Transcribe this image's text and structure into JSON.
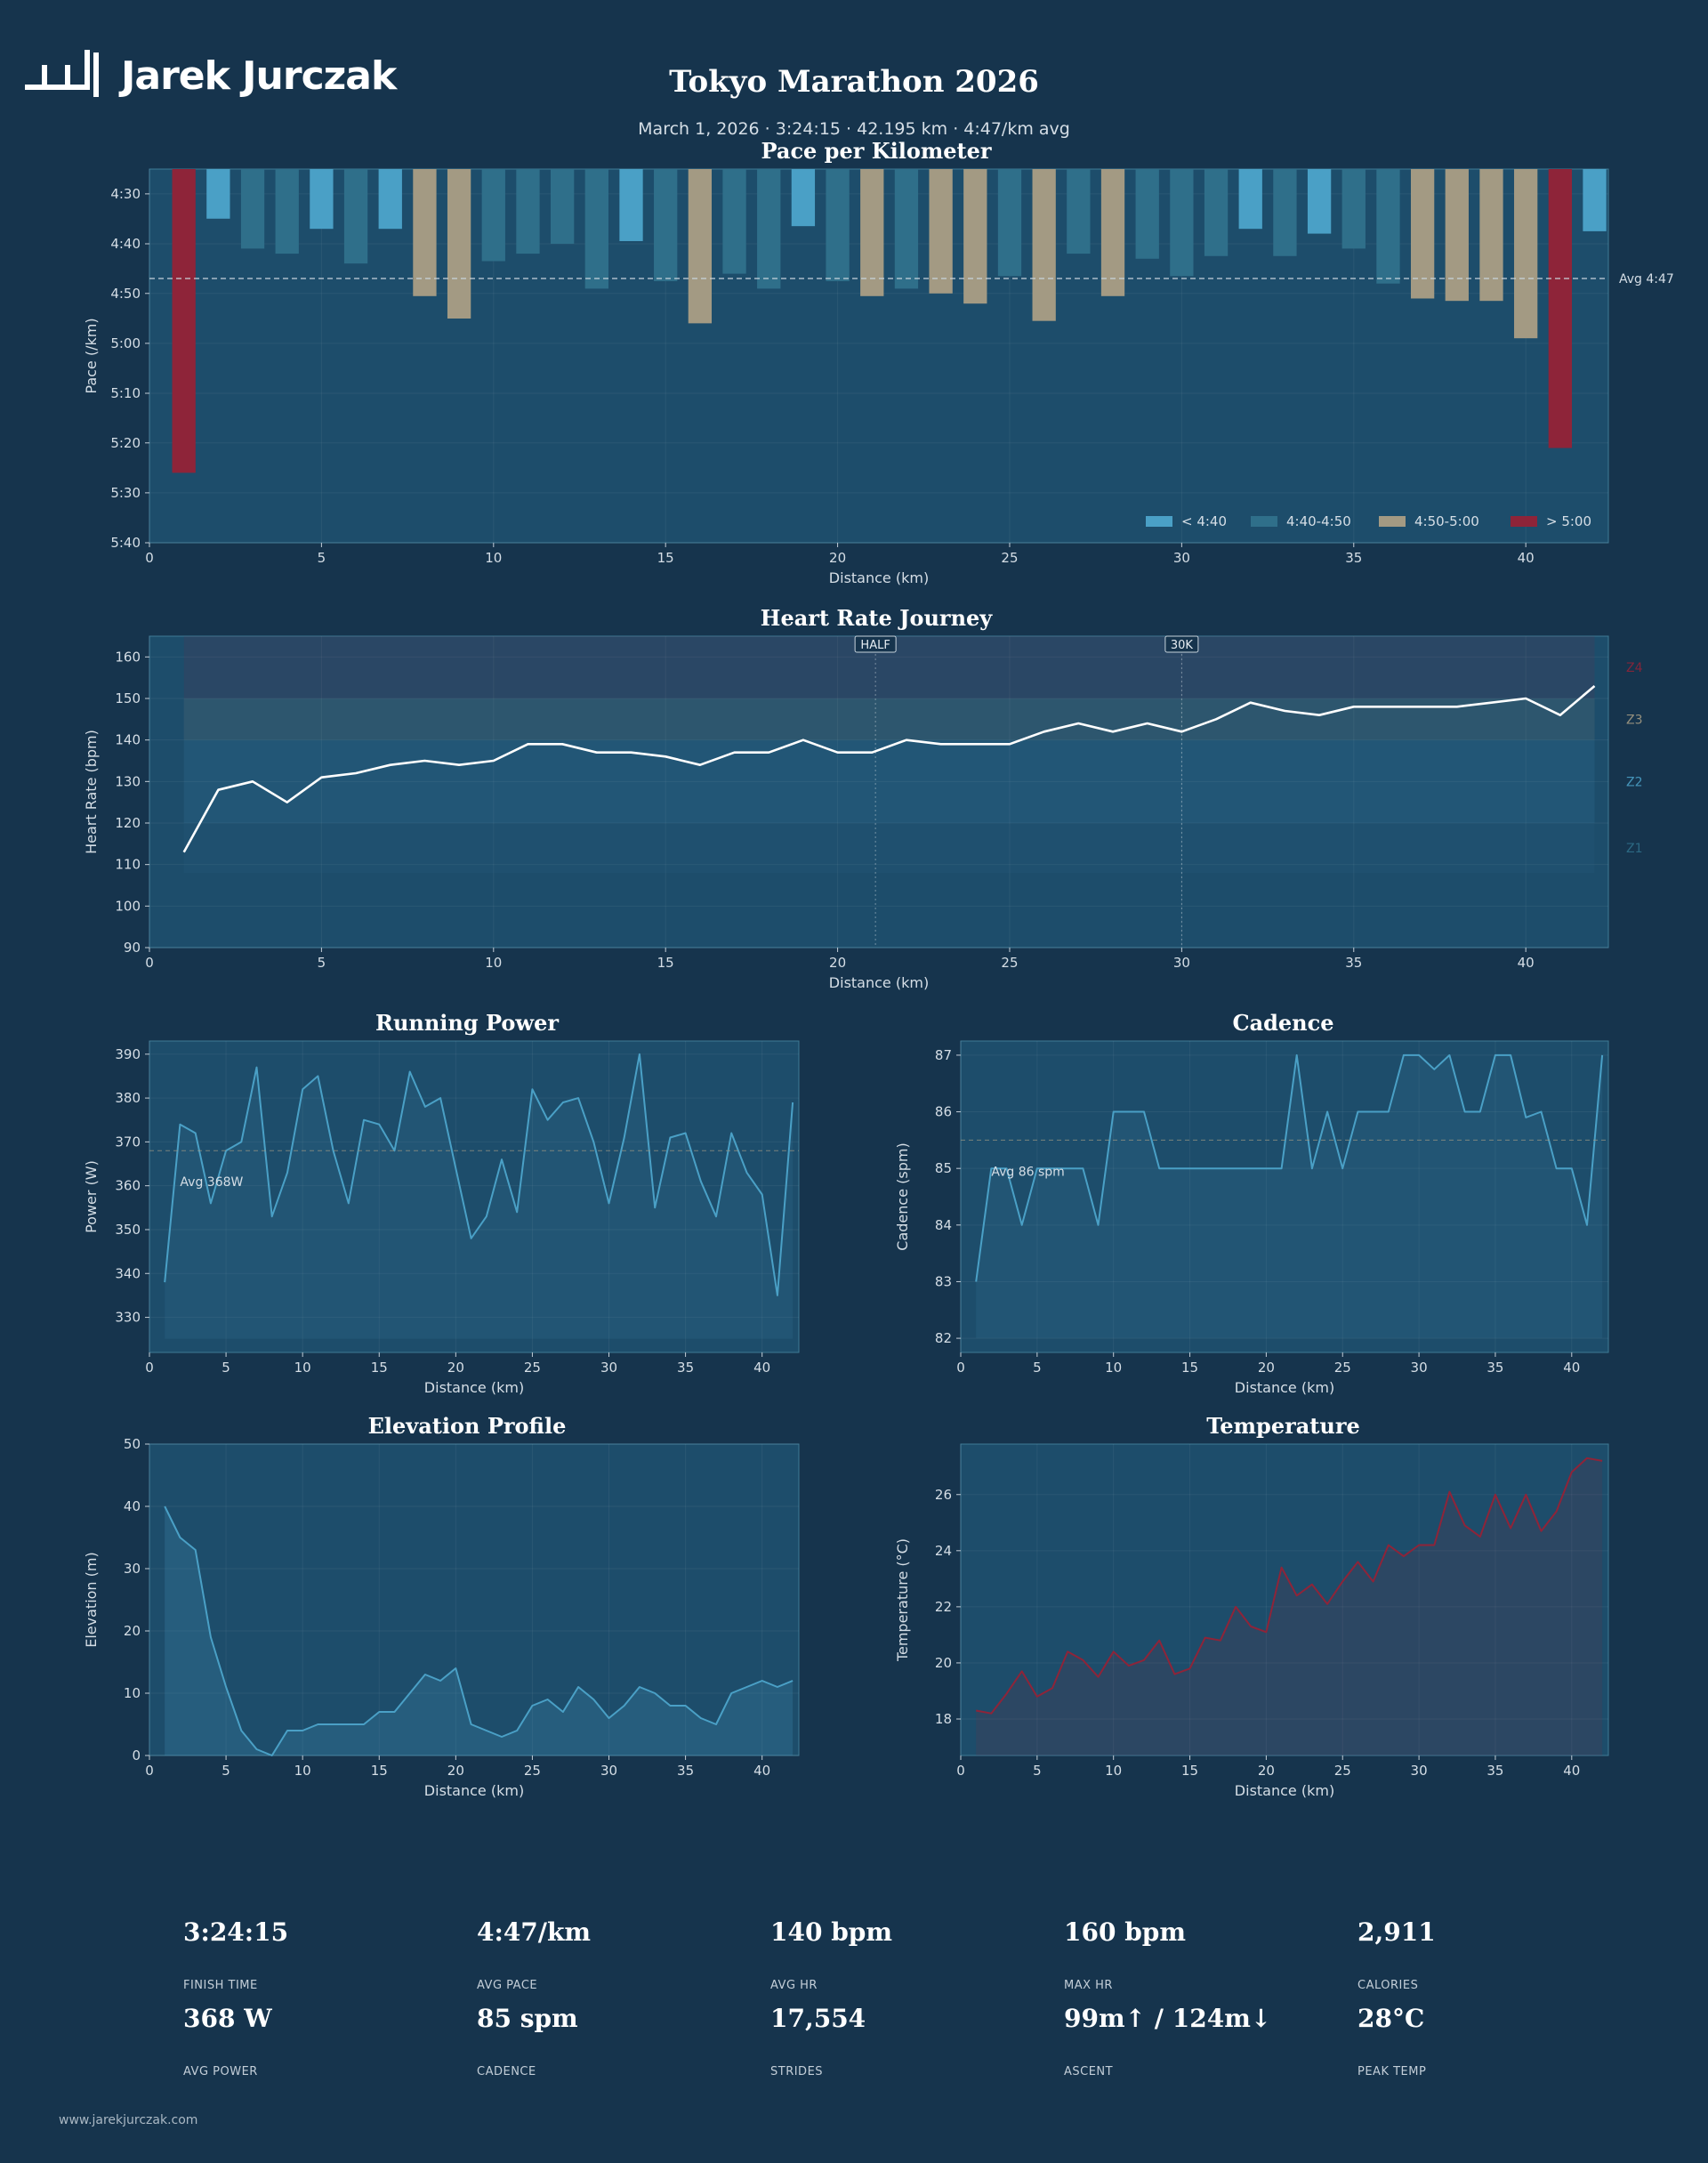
{
  "brand": {
    "name": "Jarek Jurczak",
    "footer_url": "www.jarekjurczak.com"
  },
  "header": {
    "title": "Tokyo Marathon 2026",
    "subtitle": "March 1, 2026  ·  3:24:15  ·  42.195 km  ·  4:47/km avg"
  },
  "colors": {
    "background": "#16344d",
    "panel": "#1d4d6b",
    "fast": "#4aa0c6",
    "steady": "#2f6f8a",
    "moderate": "#a39a83",
    "slow": "#8e2439",
    "line_white": "#ffffff",
    "line_blue": "#4aa0c6",
    "temp_line": "#8e2439"
  },
  "chart_data": [
    {
      "id": "pace",
      "type": "bar",
      "title": "Pace per Kilometer",
      "xlabel": "Distance (km)",
      "ylabel": "Pace (/km)",
      "xlim": [
        0,
        42.4
      ],
      "ylim": [
        4.417,
        5.667
      ],
      "y_inverted": true,
      "xticks": [
        0,
        5,
        10,
        15,
        20,
        25,
        30,
        35,
        40
      ],
      "yticks": [
        4.5,
        4.667,
        4.833,
        5.0,
        5.167,
        5.333,
        5.5,
        5.667
      ],
      "ytick_labels": [
        "4:30",
        "4:40",
        "4:50",
        "5:00",
        "5:10",
        "5:20",
        "5:30",
        "5:40"
      ],
      "avg_line": {
        "value": 4.783,
        "label": "Avg 4:47"
      },
      "legend": {
        "placement": "bottom-right",
        "entries": [
          {
            "label": "< 4:40",
            "color": "#4aa0c6"
          },
          {
            "label": "4:40-4:50",
            "color": "#2f6f8a"
          },
          {
            "label": "4:50-5:00",
            "color": "#a39a83"
          },
          {
            "label": "> 5:00",
            "color": "#8e2439"
          }
        ]
      },
      "x": [
        1,
        2,
        3,
        4,
        5,
        6,
        7,
        8,
        9,
        10,
        11,
        12,
        13,
        14,
        15,
        16,
        17,
        18,
        19,
        20,
        21,
        22,
        23,
        24,
        25,
        26,
        27,
        28,
        29,
        30,
        31,
        32,
        33,
        34,
        35,
        36,
        37,
        38,
        39,
        40,
        41,
        42
      ],
      "values": [
        5.433,
        4.583,
        4.683,
        4.7,
        4.617,
        4.733,
        4.617,
        4.842,
        4.917,
        4.725,
        4.7,
        4.667,
        4.817,
        4.658,
        4.792,
        4.933,
        4.767,
        4.817,
        4.608,
        4.792,
        4.842,
        4.817,
        4.833,
        4.867,
        4.775,
        4.925,
        4.7,
        4.842,
        4.717,
        4.775,
        4.708,
        4.617,
        4.708,
        4.633,
        4.683,
        4.8,
        4.85,
        4.858,
        4.858,
        4.983,
        5.35,
        4.625
      ]
    },
    {
      "id": "heart_rate",
      "type": "line",
      "title": "Heart Rate Journey",
      "xlabel": "Distance (km)",
      "ylabel": "Heart Rate (bpm)",
      "xlim": [
        0,
        42.4
      ],
      "ylim": [
        90,
        165
      ],
      "xticks": [
        0,
        5,
        10,
        15,
        20,
        25,
        30,
        35,
        40
      ],
      "yticks": [
        90,
        100,
        110,
        120,
        130,
        140,
        150,
        160
      ],
      "markers": [
        {
          "x": 21.1,
          "label": "HALF"
        },
        {
          "x": 30,
          "label": "30K"
        }
      ],
      "zones": [
        {
          "label": "Z4",
          "from": 150,
          "to": 165,
          "color": "#8e2439"
        },
        {
          "label": "Z3",
          "from": 140,
          "to": 150,
          "color": "#a39a83"
        },
        {
          "label": "Z2",
          "from": 120,
          "to": 140,
          "color": "#4aa0c6"
        },
        {
          "label": "Z1",
          "from": 108,
          "to": 120,
          "color": "#2f6f8a"
        }
      ],
      "x": [
        1,
        2,
        3,
        4,
        5,
        6,
        7,
        8,
        9,
        10,
        11,
        12,
        13,
        14,
        15,
        16,
        17,
        18,
        19,
        20,
        21,
        22,
        23,
        24,
        25,
        26,
        27,
        28,
        29,
        30,
        31,
        32,
        33,
        34,
        35,
        36,
        37,
        38,
        39,
        40,
        41,
        42
      ],
      "values": [
        113,
        128,
        130,
        125,
        131,
        132,
        134,
        135,
        134,
        135,
        139,
        139,
        137,
        137,
        136,
        134,
        137,
        137,
        140,
        137,
        137,
        140,
        139,
        139,
        139,
        142,
        144,
        142,
        144,
        142,
        145,
        149,
        147,
        146,
        148,
        148,
        148,
        148,
        149,
        150,
        146,
        153
      ]
    },
    {
      "id": "power",
      "type": "line",
      "title": "Running Power",
      "xlabel": "Distance (km)",
      "ylabel": "Power (W)",
      "xlim": [
        0,
        42.4
      ],
      "ylim": [
        322,
        393
      ],
      "xticks": [
        0,
        5,
        10,
        15,
        20,
        25,
        30,
        35,
        40
      ],
      "yticks": [
        330,
        340,
        350,
        360,
        370,
        380,
        390
      ],
      "avg_line": {
        "value": 368,
        "label": "Avg 368W"
      },
      "x": [
        1,
        2,
        3,
        4,
        5,
        6,
        7,
        8,
        9,
        10,
        11,
        12,
        13,
        14,
        15,
        16,
        17,
        18,
        19,
        20,
        21,
        22,
        23,
        24,
        25,
        26,
        27,
        28,
        29,
        30,
        31,
        32,
        33,
        34,
        35,
        36,
        37,
        38,
        39,
        40,
        41,
        42
      ],
      "values": [
        338,
        374,
        372,
        356,
        368,
        370,
        387,
        353,
        363,
        382,
        385,
        368,
        356,
        375,
        374,
        368,
        386,
        378,
        380,
        364,
        348,
        353,
        366,
        354,
        382,
        375,
        379,
        380,
        370,
        356,
        371,
        390,
        355,
        371,
        372,
        361,
        353,
        372,
        363,
        358,
        335,
        379
      ]
    },
    {
      "id": "cadence",
      "type": "line",
      "title": "Cadence",
      "xlabel": "Distance (km)",
      "ylabel": "Cadence (spm)",
      "xlim": [
        0,
        42.4
      ],
      "ylim": [
        81.75,
        87.25
      ],
      "xticks": [
        0,
        5,
        10,
        15,
        20,
        25,
        30,
        35,
        40
      ],
      "yticks": [
        82,
        83,
        84,
        85,
        86,
        87
      ],
      "avg_line": {
        "value": 85.5,
        "label": "Avg 86 spm"
      },
      "x": [
        1,
        2,
        3,
        4,
        5,
        6,
        7,
        8,
        9,
        10,
        11,
        12,
        13,
        14,
        15,
        16,
        17,
        18,
        19,
        20,
        21,
        22,
        23,
        24,
        25,
        26,
        27,
        28,
        29,
        30,
        31,
        32,
        33,
        34,
        35,
        36,
        37,
        38,
        39,
        40,
        41,
        42
      ],
      "values": [
        83,
        85,
        85,
        84,
        85,
        85,
        85,
        85,
        84,
        86,
        86,
        86,
        85,
        85,
        85,
        85,
        85,
        85,
        85,
        85,
        85,
        87,
        85,
        86,
        85,
        86,
        86,
        86,
        87,
        87,
        86.75,
        87,
        86,
        86,
        87,
        87,
        85.9,
        86,
        85,
        85,
        84,
        87
      ]
    },
    {
      "id": "elevation",
      "type": "area",
      "title": "Elevation Profile",
      "xlabel": "Distance (km)",
      "ylabel": "Elevation (m)",
      "xlim": [
        0,
        42.4
      ],
      "ylim": [
        0,
        50
      ],
      "xticks": [
        0,
        5,
        10,
        15,
        20,
        25,
        30,
        35,
        40
      ],
      "yticks": [
        0,
        10,
        20,
        30,
        40,
        50
      ],
      "x": [
        1,
        2,
        3,
        4,
        5,
        6,
        7,
        8,
        9,
        10,
        11,
        12,
        13,
        14,
        15,
        16,
        17,
        18,
        19,
        20,
        21,
        22,
        23,
        24,
        25,
        26,
        27,
        28,
        29,
        30,
        31,
        32,
        33,
        34,
        35,
        36,
        37,
        38,
        39,
        40,
        41,
        42
      ],
      "values": [
        40,
        35,
        33,
        19,
        11,
        4,
        1,
        0,
        4,
        4,
        5,
        5,
        5,
        5,
        7,
        7,
        10,
        13,
        12,
        14,
        5,
        4,
        3,
        4,
        8,
        9,
        7,
        11,
        9,
        6,
        8,
        11,
        10,
        8,
        8,
        6,
        5,
        10,
        11,
        12,
        11,
        12
      ]
    },
    {
      "id": "temperature",
      "type": "area",
      "title": "Temperature",
      "xlabel": "Distance (km)",
      "ylabel": "Temperature (°C)",
      "xlim": [
        0,
        42.4
      ],
      "ylim": [
        16.7,
        27.8
      ],
      "xticks": [
        0,
        5,
        10,
        15,
        20,
        25,
        30,
        35,
        40
      ],
      "yticks": [
        18,
        20,
        22,
        24,
        26
      ],
      "x": [
        1,
        2,
        3,
        4,
        5,
        6,
        7,
        8,
        9,
        10,
        11,
        12,
        13,
        14,
        15,
        16,
        17,
        18,
        19,
        20,
        21,
        22,
        23,
        24,
        25,
        26,
        27,
        28,
        29,
        30,
        31,
        32,
        33,
        34,
        35,
        36,
        37,
        38,
        39,
        40,
        41,
        42
      ],
      "values": [
        18.3,
        18.2,
        18.9,
        19.7,
        18.8,
        19.1,
        20.4,
        20.1,
        19.5,
        20.4,
        19.9,
        20.1,
        20.8,
        19.6,
        19.8,
        20.9,
        20.8,
        22.0,
        21.3,
        21.1,
        23.4,
        22.4,
        22.8,
        22.1,
        22.9,
        23.6,
        22.9,
        24.2,
        23.8,
        24.2,
        24.2,
        26.1,
        24.9,
        24.5,
        26.0,
        24.8,
        26.0,
        24.7,
        25.4,
        26.8,
        27.3,
        27.2
      ]
    }
  ],
  "stats": [
    {
      "value": "3:24:15",
      "label": "FINISH TIME"
    },
    {
      "value": "4:47/km",
      "label": "AVG PACE"
    },
    {
      "value": "140 bpm",
      "label": "AVG HR"
    },
    {
      "value": "160 bpm",
      "label": "MAX HR"
    },
    {
      "value": "2,911",
      "label": "CALORIES"
    },
    {
      "value": "368 W",
      "label": "AVG POWER"
    },
    {
      "value": "85 spm",
      "label": "CADENCE"
    },
    {
      "value": "17,554",
      "label": "STRIDES"
    },
    {
      "value": "99m↑ / 124m↓",
      "label": "ASCENT"
    },
    {
      "value": "28°C",
      "label": "PEAK TEMP"
    }
  ]
}
